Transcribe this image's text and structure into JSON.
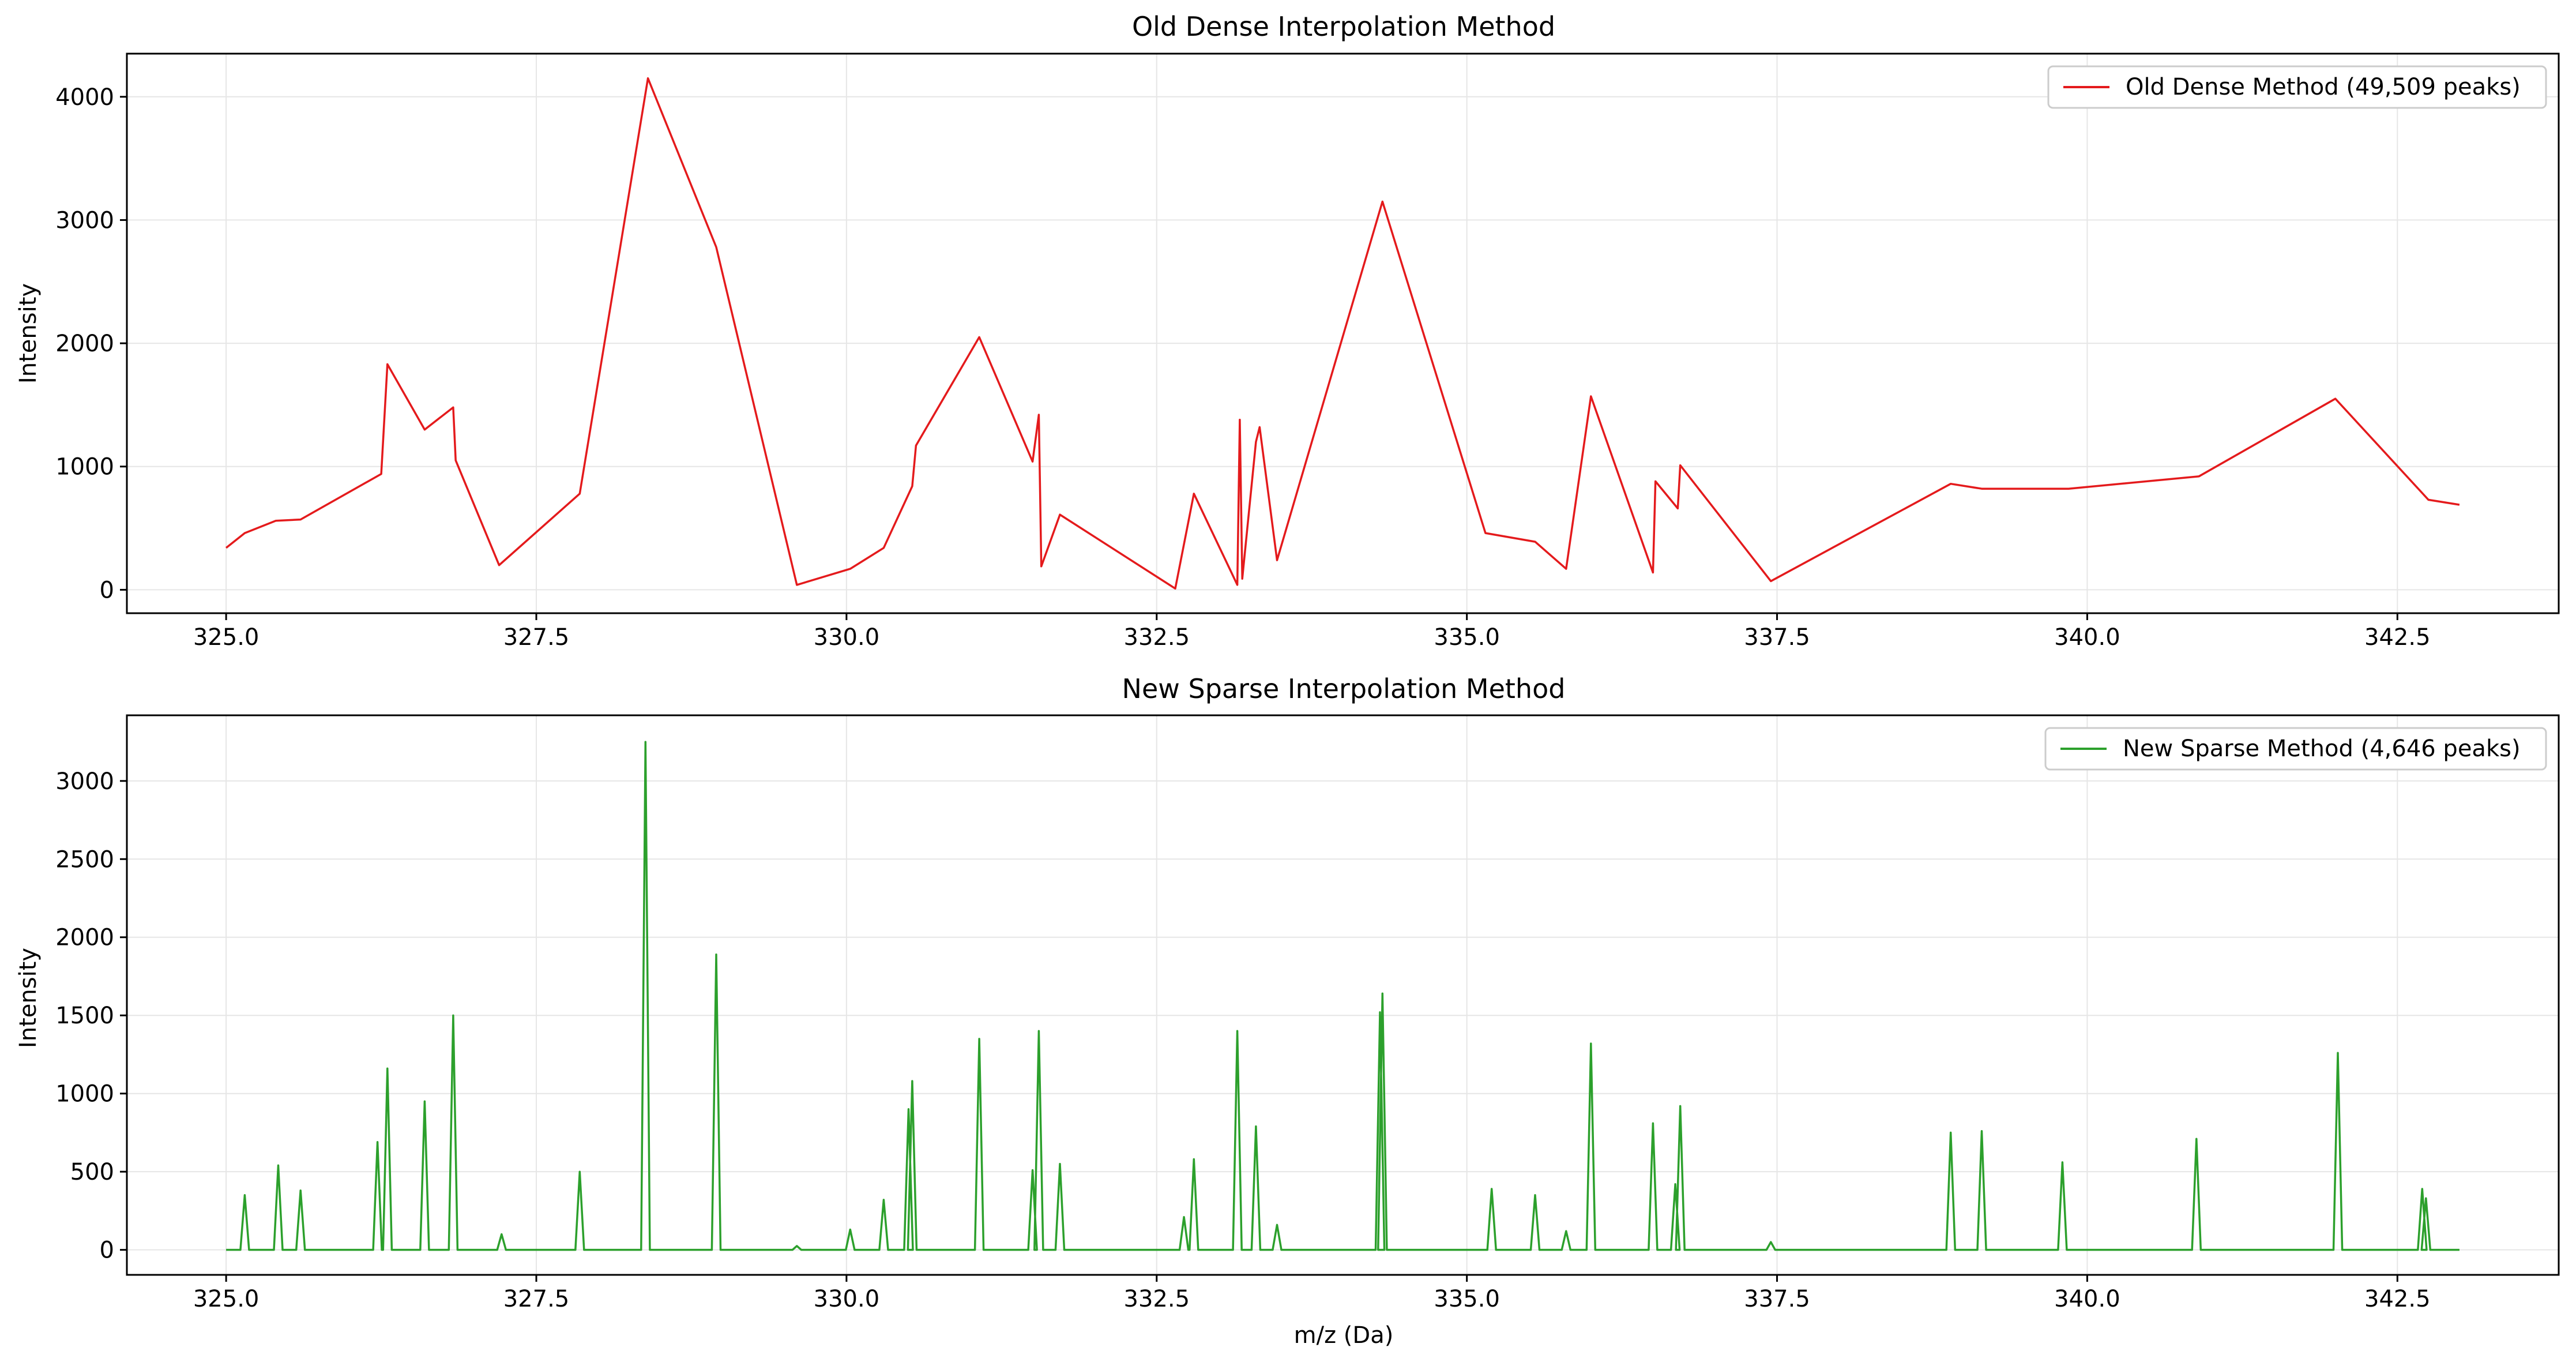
{
  "chart_data": [
    {
      "type": "line",
      "title": "Old Dense Interpolation Method",
      "xlabel": "",
      "ylabel": "Intensity",
      "xlim": [
        324.2,
        343.8
      ],
      "ylim": [
        -190,
        4350
      ],
      "xticks": [
        325.0,
        327.5,
        330.0,
        332.5,
        335.0,
        337.5,
        340.0,
        342.5
      ],
      "xtick_labels": [
        "325.0",
        "327.5",
        "330.0",
        "332.5",
        "335.0",
        "337.5",
        "340.0",
        "342.5"
      ],
      "yticks": [
        0,
        1000,
        2000,
        3000,
        4000
      ],
      "ytick_labels": [
        "0",
        "1000",
        "2000",
        "3000",
        "4000"
      ],
      "grid": true,
      "legend_position": "top-right",
      "color": "#e41a1c",
      "series": [
        {
          "name": "Old Dense Method (49,509 peaks)",
          "x": [
            325.0,
            325.15,
            325.4,
            325.6,
            326.25,
            326.3,
            326.6,
            326.83,
            326.85,
            327.2,
            327.85,
            328.4,
            328.95,
            329.6,
            330.03,
            330.3,
            330.53,
            330.56,
            331.07,
            331.5,
            331.55,
            331.57,
            331.72,
            332.65,
            332.8,
            333.15,
            333.17,
            333.19,
            333.3,
            333.33,
            333.47,
            334.32,
            335.15,
            335.55,
            335.8,
            336.0,
            336.5,
            336.52,
            336.7,
            336.72,
            337.45,
            338.9,
            339.15,
            339.85,
            340.9,
            342.0,
            342.75,
            343.0
          ],
          "y": [
            340,
            460,
            560,
            570,
            940,
            1830,
            1300,
            1480,
            1050,
            200,
            780,
            4150,
            2780,
            40,
            170,
            340,
            840,
            1170,
            2050,
            1040,
            1420,
            190,
            610,
            10,
            780,
            40,
            1380,
            90,
            1200,
            1320,
            240,
            3150,
            460,
            390,
            170,
            1570,
            140,
            880,
            660,
            1010,
            70,
            860,
            820,
            820,
            920,
            1550,
            730,
            690
          ]
        }
      ]
    },
    {
      "type": "line",
      "title": "New Sparse Interpolation Method",
      "xlabel": "m/z (Da)",
      "ylabel": "Intensity",
      "xlim": [
        324.2,
        343.8
      ],
      "ylim": [
        -160,
        3420
      ],
      "xticks": [
        325.0,
        327.5,
        330.0,
        332.5,
        335.0,
        337.5,
        340.0,
        342.5
      ],
      "xtick_labels": [
        "325.0",
        "327.5",
        "330.0",
        "332.5",
        "335.0",
        "337.5",
        "340.0",
        "342.5"
      ],
      "yticks": [
        0,
        500,
        1000,
        1500,
        2000,
        2500,
        3000
      ],
      "ytick_labels": [
        "0",
        "500",
        "1000",
        "1500",
        "2000",
        "2500",
        "3000"
      ],
      "grid": true,
      "legend_position": "top-right",
      "color": "#2ca02c",
      "baseline_range": [
        325.0,
        343.0
      ],
      "series": [
        {
          "name": "New Sparse Method (4,646 peaks)",
          "peaks_x": [
            325.15,
            325.42,
            325.6,
            326.22,
            326.3,
            326.6,
            326.83,
            327.22,
            327.85,
            328.38,
            328.95,
            329.6,
            330.03,
            330.3,
            330.5,
            330.53,
            331.07,
            331.5,
            331.55,
            331.72,
            332.72,
            332.8,
            333.15,
            333.3,
            333.47,
            334.3,
            334.32,
            335.2,
            335.55,
            335.8,
            336.0,
            336.5,
            336.68,
            336.72,
            337.45,
            338.9,
            339.15,
            339.8,
            340.88,
            342.02,
            342.7,
            342.73
          ],
          "peaks_y": [
            350,
            540,
            380,
            690,
            1160,
            950,
            1500,
            100,
            500,
            3250,
            1890,
            25,
            130,
            320,
            900,
            1080,
            1350,
            510,
            1400,
            550,
            210,
            580,
            1400,
            790,
            160,
            1520,
            1640,
            390,
            350,
            120,
            1320,
            810,
            420,
            920,
            50,
            750,
            760,
            560,
            710,
            1260,
            390,
            330
          ]
        }
      ]
    }
  ]
}
